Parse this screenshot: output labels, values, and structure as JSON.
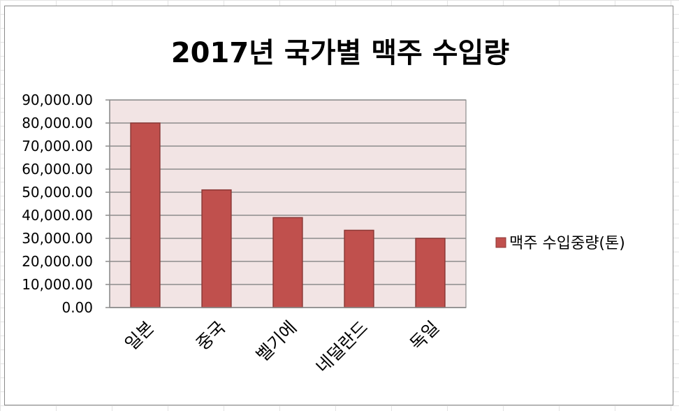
{
  "chart_data": {
    "type": "bar",
    "title": "2017년 국가별 맥주 수입량",
    "xlabel": "",
    "ylabel": "",
    "categories": [
      "일본",
      "중국",
      "벨기에",
      "네덜란드",
      "독일"
    ],
    "series": [
      {
        "name": "맥주 수입중량(톤)",
        "values": [
          80000,
          51000,
          39000,
          33500,
          30000
        ]
      }
    ],
    "ylim": [
      0,
      90000
    ],
    "ytick_step": 10000,
    "ytick_labels": [
      "0.00",
      "10,000.00",
      "20,000.00",
      "30,000.00",
      "40,000.00",
      "50,000.00",
      "60,000.00",
      "70,000.00",
      "80,000.00",
      "90,000.00"
    ],
    "grid": true,
    "legend_position": "right",
    "colors": {
      "bar_fill": "#c0504d",
      "bar_stroke": "#8c3836",
      "plot_background": "#f2e4e4",
      "gridline": "#8c8c8c"
    }
  }
}
